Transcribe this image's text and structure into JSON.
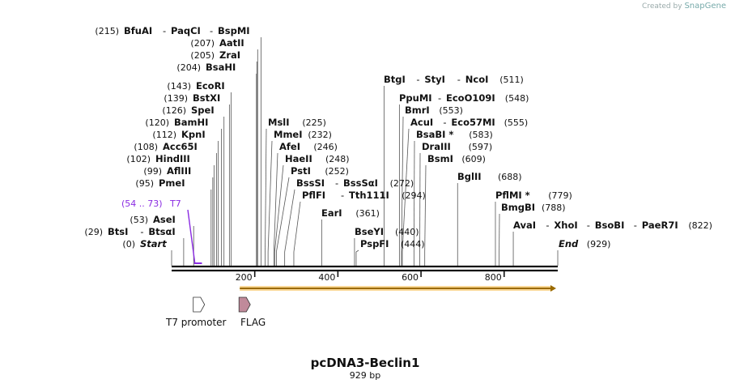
{
  "credit": {
    "prefix": "Created by",
    "brand": "SnapGene"
  },
  "plasmid": {
    "name": "pcDNA3-Beclin1",
    "length_label": "929 bp",
    "length": 929
  },
  "sites": [
    {
      "names": [
        "BfuAI",
        "PaqCI",
        "BspMI"
      ],
      "pos_label": "(215)",
      "pos": 215,
      "label_pos": "left"
    },
    {
      "names": [
        "AatII"
      ],
      "pos_label": "(207)",
      "pos": 207,
      "label_pos": "left"
    },
    {
      "names": [
        "ZraI"
      ],
      "pos_label": "(205)",
      "pos": 205,
      "label_pos": "left"
    },
    {
      "names": [
        "BsaHI"
      ],
      "pos_label": "(204)",
      "pos": 204,
      "label_pos": "left"
    },
    {
      "names": [
        "EcoRI"
      ],
      "pos_label": "(143)",
      "pos": 143,
      "label_pos": "left"
    },
    {
      "names": [
        "BstXI"
      ],
      "pos_label": "(139)",
      "pos": 139,
      "label_pos": "left"
    },
    {
      "names": [
        "SpeI"
      ],
      "pos_label": "(126)",
      "pos": 126,
      "label_pos": "left"
    },
    {
      "names": [
        "BamHI"
      ],
      "pos_label": "(120)",
      "pos": 120,
      "label_pos": "left"
    },
    {
      "names": [
        "KpnI"
      ],
      "pos_label": "(112)",
      "pos": 112,
      "label_pos": "left"
    },
    {
      "names": [
        "Acc65I"
      ],
      "pos_label": "(108)",
      "pos": 108,
      "label_pos": "left"
    },
    {
      "names": [
        "HindIII"
      ],
      "pos_label": "(102)",
      "pos": 102,
      "label_pos": "left"
    },
    {
      "names": [
        "AflIII"
      ],
      "pos_label": "(99)",
      "pos": 99,
      "label_pos": "left"
    },
    {
      "names": [
        "PmeI"
      ],
      "pos_label": "(95)",
      "pos": 95,
      "label_pos": "left"
    },
    {
      "names": [
        "AseI"
      ],
      "pos_label": "(53)",
      "pos": 53,
      "label_pos": "left"
    },
    {
      "names": [
        "BtsI",
        "BtsαI"
      ],
      "pos_label": "(29)",
      "pos": 29,
      "label_pos": "left"
    },
    {
      "names": [
        "Start"
      ],
      "pos_label": "(0)",
      "pos": 0,
      "label_pos": "left",
      "italic": true
    },
    {
      "names": [
        "MslI"
      ],
      "pos_label": "(225)",
      "pos": 225,
      "label_pos": "right"
    },
    {
      "names": [
        "MmeI"
      ],
      "pos_label": "(232)",
      "pos": 232,
      "label_pos": "right"
    },
    {
      "names": [
        "AfeI"
      ],
      "pos_label": "(246)",
      "pos": 246,
      "label_pos": "right"
    },
    {
      "names": [
        "HaeII"
      ],
      "pos_label": "(248)",
      "pos": 248,
      "label_pos": "right"
    },
    {
      "names": [
        "PstI"
      ],
      "pos_label": "(252)",
      "pos": 252,
      "label_pos": "right"
    },
    {
      "names": [
        "BssSI",
        "BssSαI"
      ],
      "pos_label": "(272)",
      "pos": 272,
      "label_pos": "right"
    },
    {
      "names": [
        "PflFI",
        "Tth111I"
      ],
      "pos_label": "(294)",
      "pos": 294,
      "label_pos": "right"
    },
    {
      "names": [
        "EarI"
      ],
      "pos_label": "(361)",
      "pos": 361,
      "label_pos": "right"
    },
    {
      "names": [
        "BseYI"
      ],
      "pos_label": "(440)",
      "pos": 440,
      "label_pos": "right"
    },
    {
      "names": [
        "PspFI"
      ],
      "pos_label": "(444)",
      "pos": 444,
      "label_pos": "right"
    },
    {
      "names": [
        "BtgI",
        "StyI",
        "NcoI"
      ],
      "pos_label": "(511)",
      "pos": 511,
      "label_pos": "right"
    },
    {
      "names": [
        "PpuMI",
        "EcoO109I"
      ],
      "pos_label": "(548)",
      "pos": 548,
      "label_pos": "right"
    },
    {
      "names": [
        "BmrI"
      ],
      "pos_label": "(553)",
      "pos": 553,
      "label_pos": "right"
    },
    {
      "names": [
        "AcuI",
        "Eco57MI"
      ],
      "pos_label": "(555)",
      "pos": 555,
      "label_pos": "right"
    },
    {
      "names": [
        "BsaBI *"
      ],
      "pos_label": "(583)",
      "pos": 583,
      "label_pos": "right"
    },
    {
      "names": [
        "DraIII"
      ],
      "pos_label": "(597)",
      "pos": 597,
      "label_pos": "right"
    },
    {
      "names": [
        "BsmI"
      ],
      "pos_label": "(609)",
      "pos": 609,
      "label_pos": "right"
    },
    {
      "names": [
        "BglII"
      ],
      "pos_label": "(688)",
      "pos": 688,
      "label_pos": "right"
    },
    {
      "names": [
        "PflMI *"
      ],
      "pos_label": "(779)",
      "pos": 779,
      "label_pos": "right"
    },
    {
      "names": [
        "BmgBI"
      ],
      "pos_label": "(788)",
      "pos": 788,
      "label_pos": "right"
    },
    {
      "names": [
        "AvaI",
        "XhoI",
        "BsoBI",
        "PaeR7I"
      ],
      "pos_label": "(822)",
      "pos": 822,
      "label_pos": "right"
    },
    {
      "names": [
        "End"
      ],
      "pos_label": "(929)",
      "pos": 929,
      "label_pos": "right",
      "italic": true
    }
  ],
  "primer": {
    "name": "T7",
    "range_label": "(54 .. 73)",
    "start": 54,
    "end": 73,
    "color": "#8a2be2"
  },
  "axis": {
    "ticks": [
      200,
      400,
      600,
      800
    ]
  },
  "features": [
    {
      "name": "T7 promoter",
      "start": 54,
      "end": 73,
      "color": "#ffffff",
      "direction": "forward"
    },
    {
      "name": "FLAG",
      "start": 164,
      "end": 187,
      "color": "#c08a9a",
      "direction": "forward"
    }
  ],
  "orf": {
    "start": 164,
    "end": 929,
    "color": "#f4b642"
  }
}
